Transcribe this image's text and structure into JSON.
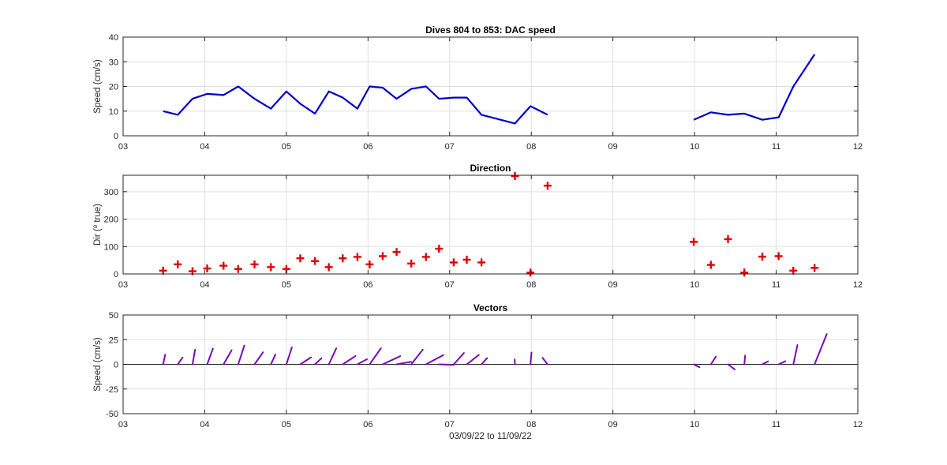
{
  "chart_data": [
    {
      "id": "speed",
      "type": "line",
      "title": "Dives 804 to 853: DAC speed",
      "ylabel": "Speed (cm/s)",
      "xlabel": "",
      "xlim": [
        3,
        12
      ],
      "ylim": [
        0,
        40
      ],
      "xticks": [
        3,
        4,
        5,
        6,
        7,
        8,
        9,
        10,
        11,
        12
      ],
      "xtick_labels": [
        "03",
        "04",
        "05",
        "06",
        "07",
        "08",
        "09",
        "10",
        "11",
        "12"
      ],
      "yticks": [
        0,
        10,
        20,
        30,
        40
      ],
      "ytick_labels": [
        "0",
        "10",
        "20",
        "30",
        "40"
      ],
      "grid": true,
      "color": "#0000c8",
      "segments": [
        {
          "x": [
            3.49,
            3.67,
            3.85,
            4.03,
            4.23,
            4.41,
            4.61,
            4.81,
            5.0,
            5.17,
            5.35,
            5.52,
            5.69,
            5.87,
            6.02,
            6.18,
            6.35,
            6.53,
            6.71,
            6.87,
            7.05,
            7.21,
            7.39,
            7.8,
            7.99,
            8.2
          ],
          "y": [
            10,
            8.5,
            15,
            17,
            16.5,
            20,
            15,
            11,
            18,
            13,
            9,
            18,
            15.5,
            11,
            20,
            19.5,
            15,
            19,
            20,
            15,
            15.5,
            15.5,
            8.5,
            5,
            12,
            8.5
          ]
        },
        {
          "x": [
            9.99,
            10.2,
            10.41,
            10.61,
            10.83,
            11.03,
            11.21,
            11.47
          ],
          "y": [
            6.5,
            9.5,
            8.5,
            9,
            6.5,
            7.5,
            20,
            33
          ]
        }
      ]
    },
    {
      "id": "direction",
      "type": "scatter",
      "title": "Direction",
      "ylabel": "Dir (° true)",
      "ylabel_parts": [
        "Dir (",
        "o",
        " true)"
      ],
      "xlabel": "",
      "xlim": [
        3,
        12
      ],
      "ylim": [
        0,
        360
      ],
      "xticks": [
        3,
        4,
        5,
        6,
        7,
        8,
        9,
        10,
        11,
        12
      ],
      "xtick_labels": [
        "03",
        "04",
        "05",
        "06",
        "07",
        "08",
        "09",
        "10",
        "11",
        "12"
      ],
      "yticks": [
        0,
        100,
        200,
        300
      ],
      "ytick_labels": [
        "0",
        "100",
        "200",
        "300"
      ],
      "grid": true,
      "marker": "+",
      "color": "#e00000",
      "x": [
        3.49,
        3.67,
        3.85,
        4.03,
        4.23,
        4.41,
        4.61,
        4.81,
        5.0,
        5.17,
        5.35,
        5.52,
        5.69,
        5.87,
        6.02,
        6.18,
        6.35,
        6.53,
        6.71,
        6.87,
        7.05,
        7.21,
        7.39,
        7.8,
        7.99,
        8.2,
        9.99,
        10.2,
        10.41,
        10.61,
        10.83,
        11.03,
        11.21,
        11.47
      ],
      "y": [
        12,
        35,
        10,
        20,
        30,
        18,
        35,
        25,
        18,
        57,
        47,
        25,
        57,
        62,
        35,
        65,
        80,
        38,
        62,
        92,
        42,
        52,
        42,
        357,
        5,
        322,
        117,
        33,
        127,
        5,
        63,
        65,
        12,
        22
      ]
    },
    {
      "id": "vectors",
      "type": "vector",
      "title": "Vectors",
      "ylabel": "Speed (cm/s)",
      "xlabel": "03/09/22 to 11/09/22",
      "xlim": [
        3,
        12
      ],
      "ylim": [
        -50,
        50
      ],
      "xticks": [
        3,
        4,
        5,
        6,
        7,
        8,
        9,
        10,
        11,
        12
      ],
      "xtick_labels": [
        "03",
        "04",
        "05",
        "06",
        "07",
        "08",
        "09",
        "10",
        "11",
        "12"
      ],
      "yticks": [
        -50,
        -25,
        0,
        25,
        50
      ],
      "ytick_labels": [
        "-50",
        "-25",
        "0",
        "25",
        "50"
      ],
      "grid": true,
      "color": "#7a0ab0",
      "x": [
        3.49,
        3.67,
        3.85,
        4.03,
        4.23,
        4.41,
        4.61,
        4.81,
        5.0,
        5.17,
        5.35,
        5.52,
        5.69,
        5.87,
        6.02,
        6.18,
        6.35,
        6.53,
        6.71,
        6.87,
        7.05,
        7.21,
        7.39,
        7.8,
        7.99,
        8.2,
        9.99,
        10.2,
        10.41,
        10.61,
        10.83,
        11.03,
        11.21,
        11.47
      ],
      "speed": [
        10,
        8.5,
        15,
        17,
        16.5,
        20,
        15,
        11,
        18,
        13,
        9,
        18,
        15.5,
        11,
        20,
        19.5,
        15,
        19,
        20,
        15,
        15.5,
        15.5,
        8.5,
        5,
        12,
        8.5,
        6.5,
        9.5,
        8.5,
        9,
        6.5,
        7.5,
        20,
        33
      ],
      "direction": [
        12,
        35,
        10,
        20,
        30,
        18,
        35,
        25,
        18,
        57,
        47,
        25,
        57,
        62,
        35,
        65,
        80,
        38,
        62,
        92,
        42,
        52,
        42,
        357,
        5,
        322,
        117,
        33,
        127,
        5,
        63,
        65,
        12,
        22
      ],
      "zero_line": true
    }
  ]
}
